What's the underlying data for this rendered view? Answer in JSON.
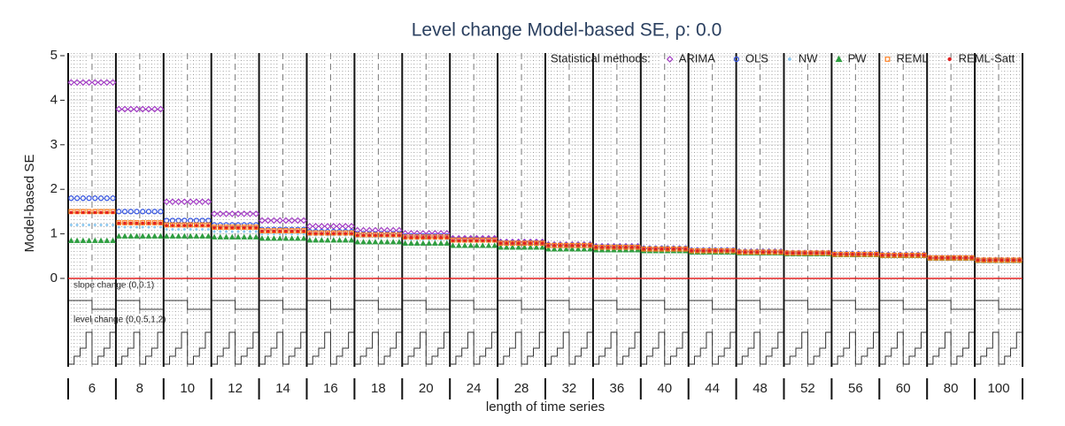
{
  "chart_data": {
    "type": "dot",
    "title": "Level change Model-based SE, ρ: 0.0",
    "y_label": "Model-based SE",
    "x_label": "length of time series",
    "legend_title": "Statistical methods:",
    "panel_labels": [
      "slope change (0,0.1)",
      "level change (0,0.5,1,2)"
    ],
    "categories": [
      "6",
      "8",
      "10",
      "12",
      "14",
      "16",
      "18",
      "20",
      "24",
      "28",
      "32",
      "36",
      "40",
      "44",
      "48",
      "52",
      "56",
      "60",
      "80",
      "100"
    ],
    "ylim": [
      0,
      5
    ],
    "yticks": [
      0,
      1,
      2,
      3,
      4,
      5
    ],
    "reference_line": 0,
    "grid": true,
    "series": [
      {
        "name": "ARIMA",
        "color": "#a23cc4",
        "marker": "diamond",
        "values": [
          4.4,
          3.8,
          1.72,
          1.45,
          1.3,
          1.17,
          1.08,
          1.01,
          0.9,
          0.82,
          0.76,
          0.72,
          0.67,
          0.63,
          0.6,
          0.57,
          0.55,
          0.53,
          0.46,
          0.41
        ]
      },
      {
        "name": "OLS",
        "color": "#3050e0",
        "marker": "circle",
        "values": [
          1.8,
          1.5,
          1.3,
          1.2,
          1.1,
          1.05,
          1.0,
          0.95,
          0.87,
          0.8,
          0.75,
          0.71,
          0.67,
          0.63,
          0.6,
          0.57,
          0.55,
          0.53,
          0.46,
          0.41
        ]
      },
      {
        "name": "NW",
        "color": "#8cc8f0",
        "marker": "dot",
        "values": [
          1.2,
          1.15,
          1.1,
          1.05,
          1.0,
          0.97,
          0.93,
          0.88,
          0.84,
          0.78,
          0.73,
          0.7,
          0.66,
          0.62,
          0.59,
          0.56,
          0.54,
          0.52,
          0.45,
          0.4
        ]
      },
      {
        "name": "PW",
        "color": "#2e9e40",
        "marker": "triangle",
        "values": [
          0.85,
          0.95,
          0.95,
          0.93,
          0.9,
          0.86,
          0.82,
          0.79,
          0.74,
          0.7,
          0.66,
          0.64,
          0.62,
          0.59,
          0.57,
          0.55,
          0.53,
          0.51,
          0.45,
          0.4
        ]
      },
      {
        "name": "REML",
        "color": "#ff7f20",
        "marker": "square",
        "values": [
          1.5,
          1.25,
          1.2,
          1.15,
          1.07,
          1.02,
          0.98,
          0.93,
          0.86,
          0.79,
          0.74,
          0.7,
          0.66,
          0.62,
          0.59,
          0.57,
          0.54,
          0.52,
          0.46,
          0.41
        ]
      },
      {
        "name": "REML-Satt",
        "color": "#e02020",
        "marker": "smalldot",
        "values": [
          1.48,
          1.24,
          1.19,
          1.14,
          1.06,
          1.01,
          0.97,
          0.92,
          0.85,
          0.79,
          0.74,
          0.7,
          0.66,
          0.62,
          0.59,
          0.57,
          0.54,
          0.52,
          0.46,
          0.41
        ]
      }
    ]
  }
}
